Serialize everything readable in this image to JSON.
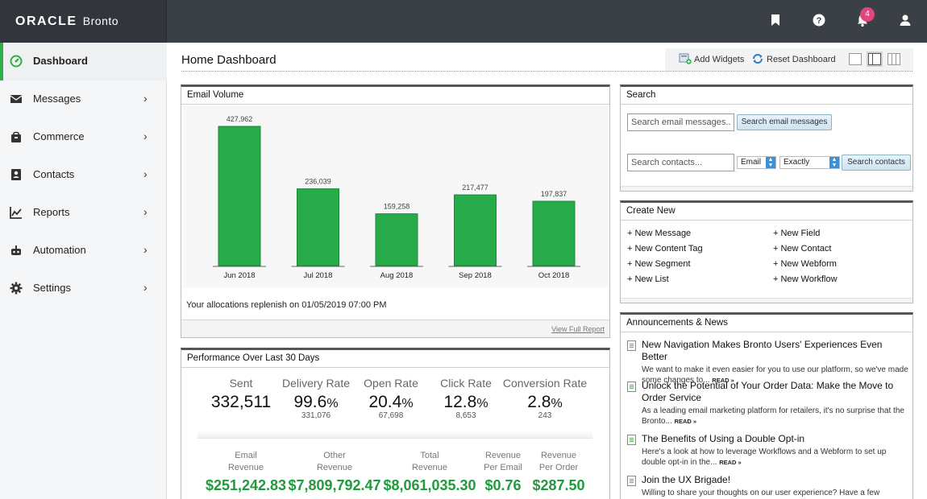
{
  "brand": {
    "oracle": "ORACLE",
    "bronto": "Bronto"
  },
  "topbar": {
    "icons": [
      "bookmark-icon",
      "help-icon",
      "bell-icon",
      "user-icon"
    ],
    "notification_count": "4"
  },
  "sidebar": {
    "items": [
      {
        "label": "Dashboard",
        "icon": "dashboard-icon",
        "active": true
      },
      {
        "label": "Messages",
        "icon": "envelope-icon"
      },
      {
        "label": "Commerce",
        "icon": "shopping-bag-icon"
      },
      {
        "label": "Contacts",
        "icon": "contacts-icon"
      },
      {
        "label": "Reports",
        "icon": "chart-icon"
      },
      {
        "label": "Automation",
        "icon": "robot-icon"
      },
      {
        "label": "Settings",
        "icon": "gear-icon"
      }
    ],
    "chevron": "›",
    "accent": "#2fae49"
  },
  "header": {
    "title": "Home Dashboard",
    "add_widgets": "Add Widgets",
    "reset_dashboard": "Reset Dashboard"
  },
  "email_volume": {
    "title": "Email Volume",
    "allocation_note": "Your allocations replenish on 01/05/2019 07:00 PM",
    "view_report": "View Full Report"
  },
  "chart_data": {
    "type": "bar",
    "categories": [
      "Jun 2018",
      "Jul 2018",
      "Aug 2018",
      "Sep 2018",
      "Oct 2018"
    ],
    "values": [
      427962,
      236039,
      159258,
      217477,
      197837
    ],
    "data_labels": [
      "427,962",
      "236,039",
      "159,258",
      "217,477",
      "197,837"
    ],
    "title": "Email Volume",
    "bar_color": "#27aa4a",
    "ylim": [
      0,
      427962
    ]
  },
  "performance": {
    "title": "Performance Over Last 30 Days",
    "metrics": [
      {
        "label": "Sent",
        "value": "332,511",
        "pct": "",
        "sub": ""
      },
      {
        "label": "Delivery Rate",
        "value": "99.6",
        "pct": "%",
        "sub": "331,076"
      },
      {
        "label": "Open Rate",
        "value": "20.4",
        "pct": "%",
        "sub": "67,698"
      },
      {
        "label": "Click Rate",
        "value": "12.8",
        "pct": "%",
        "sub": "8,653"
      },
      {
        "label": "Conversion Rate",
        "value": "2.8",
        "pct": "%",
        "sub": "243"
      }
    ],
    "revenue": [
      {
        "label1": "Email",
        "label2": "Revenue",
        "value": "$251,242.83"
      },
      {
        "label1": "Other",
        "label2": "Revenue",
        "value": "$7,809,792.47"
      },
      {
        "label1": "Total",
        "label2": "Revenue",
        "value": "$8,061,035.30"
      },
      {
        "label1": "Revenue",
        "label2": "Per Email",
        "value": "$0.76"
      },
      {
        "label1": "Revenue",
        "label2": "Per Order",
        "value": "$287.50"
      }
    ],
    "revenue_color": "#1f9a3c"
  },
  "search": {
    "title": "Search",
    "messages_placeholder": "Search email messages...",
    "messages_button": "Search email messages",
    "contacts_placeholder": "Search contacts...",
    "field_select": "Email",
    "match_select": "Exactly",
    "contacts_button": "Search contacts"
  },
  "create_new": {
    "title": "Create New",
    "left": [
      "+ New Message",
      "+ New Content Tag",
      "+ New Segment",
      "+ New List"
    ],
    "right": [
      "+ New Field",
      "+ New Contact",
      "+ New Webform",
      "+ New Workflow"
    ]
  },
  "news": {
    "title": "Announcements & News",
    "read_more": "READ »",
    "items": [
      {
        "title": "New Navigation Makes Bronto Users' Experiences Even Better",
        "body": "We want to make it even easier for you to use our platform, so we've made some changes to..."
      },
      {
        "title": "Unlock the Potential of Your Order Data: Make the Move to Order Service",
        "body": "As a leading email marketing platform for retailers, it's no surprise that the Bronto..."
      },
      {
        "title": "The Benefits of Using a Double Opt-in",
        "body": "Here's a look at how to leverage Workflows and a Webform to set up double opt-in in the..."
      },
      {
        "title": "Join the UX Brigade!",
        "body": "Willing to share your thoughts on our user experience? Have a few"
      }
    ]
  }
}
